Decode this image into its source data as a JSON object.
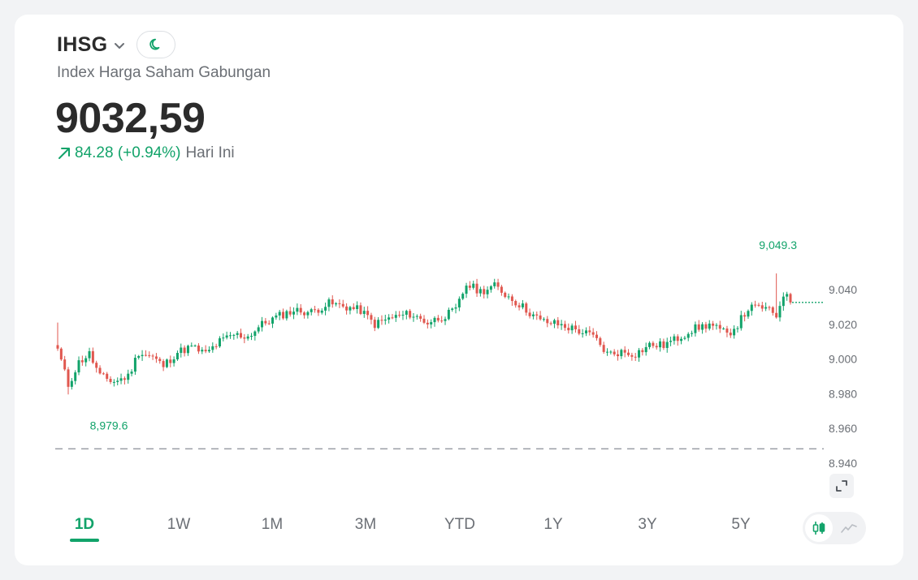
{
  "header": {
    "ticker": "IHSG",
    "subtitle": "Index Harga Saham Gabungan",
    "price": "9032,59",
    "change": "84.28 (+0.94%)",
    "change_label": "Hari Ini"
  },
  "icons": {
    "dropdown": "chevron-down-icon",
    "theme": "moon-icon",
    "change": "arrow-up-right-icon",
    "expand": "expand-icon",
    "candle_mode": "candlestick-icon",
    "line_mode": "line-chart-icon"
  },
  "colors": {
    "up": "#12a36a",
    "down": "#e0574f",
    "text": "#2b2b2b",
    "muted": "#6b6f75"
  },
  "ranges": [
    {
      "label": "1D",
      "active": true
    },
    {
      "label": "1W",
      "active": false
    },
    {
      "label": "1M",
      "active": false
    },
    {
      "label": "3M",
      "active": false
    },
    {
      "label": "YTD",
      "active": false
    },
    {
      "label": "1Y",
      "active": false
    },
    {
      "label": "3Y",
      "active": false
    },
    {
      "label": "5Y",
      "active": false
    }
  ],
  "chart_data": {
    "type": "candlestick",
    "y_ticks": [
      "9.040",
      "9.020",
      "9.000",
      "8.980",
      "8.960",
      "8.940"
    ],
    "y_tick_values": [
      9040,
      9020,
      9000,
      8980,
      8960,
      8940
    ],
    "ylim": [
      8940,
      9049.3
    ],
    "high_label": "9,049.3",
    "low_label": "8,979.6",
    "high": 9049.3,
    "low": 8979.6,
    "reference_value": 8948.31,
    "last_value": 9032.59,
    "close_path": [
      [
        0,
        9006
      ],
      [
        3,
        8985
      ],
      [
        6,
        8998
      ],
      [
        9,
        9003
      ],
      [
        12,
        8990
      ],
      [
        16,
        8987
      ],
      [
        20,
        8990
      ],
      [
        23,
        9004
      ],
      [
        27,
        9001
      ],
      [
        30,
        8996
      ],
      [
        34,
        9004
      ],
      [
        38,
        9007
      ],
      [
        42,
        9003
      ],
      [
        46,
        9010
      ],
      [
        50,
        9014
      ],
      [
        54,
        9013
      ],
      [
        58,
        9020
      ],
      [
        63,
        9025
      ],
      [
        67,
        9028
      ],
      [
        72,
        9027
      ],
      [
        77,
        9032
      ],
      [
        82,
        9030
      ],
      [
        86,
        9028
      ],
      [
        90,
        9020
      ],
      [
        95,
        9024
      ],
      [
        100,
        9026
      ],
      [
        105,
        9021
      ],
      [
        110,
        9025
      ],
      [
        113,
        9028
      ],
      [
        116,
        9043
      ],
      [
        120,
        9039
      ],
      [
        124,
        9042
      ],
      [
        128,
        9036
      ],
      [
        132,
        9030
      ],
      [
        137,
        9022
      ],
      [
        142,
        9020
      ],
      [
        147,
        9017
      ],
      [
        152,
        9013
      ],
      [
        156,
        9003
      ],
      [
        160,
        9004
      ],
      [
        164,
        9003
      ],
      [
        168,
        9008
      ],
      [
        172,
        9008
      ],
      [
        176,
        9012
      ],
      [
        180,
        9017
      ],
      [
        185,
        9020
      ],
      [
        190,
        9014
      ],
      [
        193,
        9020
      ],
      [
        196,
        9029
      ],
      [
        200,
        9030
      ],
      [
        204,
        9025
      ],
      [
        206,
        9038
      ],
      [
        208,
        9032.59
      ]
    ]
  }
}
